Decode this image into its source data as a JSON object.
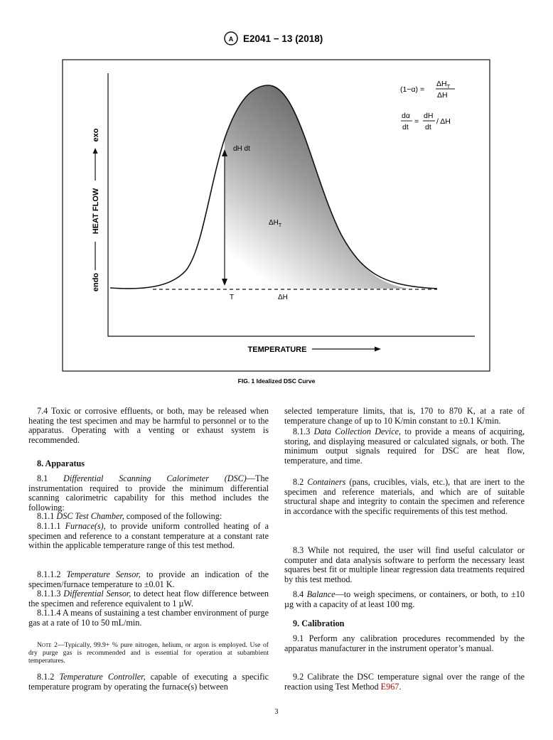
{
  "header": {
    "designation": "E2041 − 13 (2018)"
  },
  "figure": {
    "y_label_low": "endo",
    "y_label": "HEAT FLOW",
    "y_label_high": "exo",
    "x_label": "TEMPERATURE",
    "curve_label": "dH dt",
    "area_label": "ΔH",
    "area_label_sub": "T",
    "point_label": "T",
    "baseline_label": "ΔH",
    "eq1": {
      "lhs": "(1−α) =",
      "num": "ΔH",
      "num_sub": "T",
      "den": "ΔH"
    },
    "eq2": {
      "lhs_num": "dα",
      "lhs_den": "dt",
      "eq": "=",
      "rhs_num": "dH",
      "rhs_den": "dt",
      "rhs": "/ ΔH"
    },
    "caption": "FIG. 1 Idealized DSC Curve"
  },
  "left_column": [
    {
      "num": "7.4",
      "text": "Toxic or corrosive effluents, or both, may be released when heating the test specimen and may be harmful to personnel or to the apparatus. Operating with a venting or exhaust system is recommended."
    },
    {
      "heading": "8. Apparatus"
    },
    {
      "num": "8.1",
      "em": "Differential Scanning Calorimeter (DSC)",
      "text": "—The instrumentation required to provide the minimum differential scanning calorimetric capability for this method includes the following:"
    },
    {
      "num": "8.1.1",
      "em": "DSC Test Chamber,",
      "text": "composed of the following:"
    },
    {
      "num": "8.1.1.1",
      "em": "Furnace(s),",
      "text": "to provide uniform controlled heating of a specimen and reference to a constant temperature at a constant rate within the applicable temperature range of this test method."
    },
    {
      "num": "8.1.1.2",
      "em": "Temperature Sensor,",
      "text": "to provide an indication of the specimen/furnace temperature to ±0.01 K."
    },
    {
      "num": "8.1.1.3",
      "em": "Differential Sensor,",
      "text": "to detect heat flow difference between the specimen and reference equivalent to 1 µW."
    },
    {
      "num": "8.1.1.4",
      "text": "A means of sustaining a test chamber environment of purge gas at a rate of 10 to 50 mL/min."
    },
    {
      "note": "Note 2—",
      "text": "Typically, 99.9+ % pure nitrogen, helium, or argon is employed. Use of dry purge gas is recommended and is essential for operation at subambient temperatures."
    },
    {
      "num": "8.1.2",
      "em": "Temperature Controller,",
      "text": "capable of executing a specific temperature program by operating the furnace(s) between"
    }
  ],
  "right_column": [
    {
      "text": "selected temperature limits, that is, 170 to 870 K, at a rate of temperature change of up to 10 K/min constant to ±0.1 K/min."
    },
    {
      "num": "8.1.3",
      "em": "Data Collection Device,",
      "text": "to provide a means of acquiring, storing, and displaying measured or calculated signals, or both. The minimum output signals required for DSC are heat flow, temperature, and time."
    },
    {
      "num": "8.2",
      "em": "Containers",
      "text": "(pans, crucibles, vials, etc.), that are inert to the specimen and reference materials, and which are of suitable structural shape and integrity to contain the specimen and reference in accordance with the specific requirements of this test method."
    },
    {
      "num": "8.3",
      "text": "While not required, the user will find useful calculator or computer and data analysis software to perform the necessary least squares best fit or multiple linear regression data treatments required by this test method."
    },
    {
      "num": "8.4",
      "em": "Balance",
      "text": "—to weigh specimens, or containers, or both, to ±10 µg with a capacity of at least 100 mg."
    },
    {
      "heading": "9. Calibration"
    },
    {
      "num": "9.1",
      "text": "Perform any calibration procedures recommended by the apparatus manufacturer in the instrument operator’s manual."
    },
    {
      "num": "9.2",
      "text": "Calibrate the DSC temperature signal over the range of the reaction using Test Method",
      "link": "E967",
      "end": "."
    }
  ],
  "page_number": "3"
}
